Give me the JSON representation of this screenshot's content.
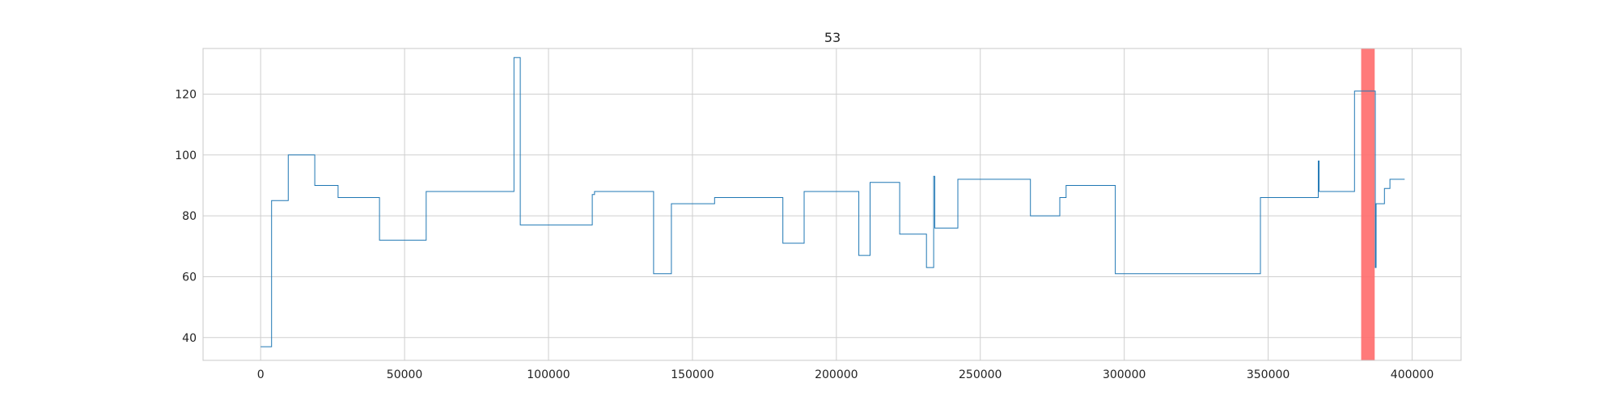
{
  "chart_data": {
    "type": "line",
    "title": "53",
    "xlabel": "",
    "ylabel": "",
    "xlim": [
      -20000,
      417000
    ],
    "ylim": [
      32.5,
      135
    ],
    "x_ticks": [
      0,
      50000,
      100000,
      150000,
      200000,
      250000,
      300000,
      350000,
      400000
    ],
    "x_tick_labels": [
      "0",
      "50000",
      "100000",
      "150000",
      "200000",
      "250000",
      "300000",
      "350000",
      "400000"
    ],
    "y_ticks": [
      40,
      60,
      80,
      100,
      120
    ],
    "y_tick_labels": [
      "40",
      "60",
      "80",
      "100",
      "120"
    ],
    "grid": true,
    "line_style": "step",
    "highlight_span": {
      "x0": 382300,
      "x1": 387000,
      "color": "#ff6b6b"
    },
    "colors": {
      "line": "#1f77b4",
      "grid": "#cfcfcf",
      "axes": "#c8c8c8"
    },
    "series": [
      {
        "points": [
          [
            0,
            37
          ],
          [
            3800,
            37
          ],
          [
            3800,
            85
          ],
          [
            9600,
            85
          ],
          [
            9600,
            100
          ],
          [
            18800,
            100
          ],
          [
            18800,
            90
          ],
          [
            26900,
            90
          ],
          [
            26900,
            86
          ],
          [
            41300,
            86
          ],
          [
            41300,
            72
          ],
          [
            57500,
            72
          ],
          [
            57500,
            88
          ],
          [
            88000,
            88
          ],
          [
            88000,
            132
          ],
          [
            90200,
            132
          ],
          [
            90200,
            77
          ],
          [
            115200,
            77
          ],
          [
            115200,
            87
          ],
          [
            116000,
            87
          ],
          [
            116000,
            88
          ],
          [
            136500,
            88
          ],
          [
            136500,
            61
          ],
          [
            142700,
            61
          ],
          [
            142700,
            84
          ],
          [
            157700,
            84
          ],
          [
            157700,
            86
          ],
          [
            181400,
            86
          ],
          [
            181400,
            71
          ],
          [
            188800,
            71
          ],
          [
            188800,
            88
          ],
          [
            207800,
            88
          ],
          [
            207800,
            67
          ],
          [
            211700,
            67
          ],
          [
            211700,
            91
          ],
          [
            222000,
            91
          ],
          [
            222000,
            74
          ],
          [
            231300,
            74
          ],
          [
            231300,
            63
          ],
          [
            233800,
            63
          ],
          [
            233800,
            93
          ],
          [
            234200,
            93
          ],
          [
            234200,
            76
          ],
          [
            242200,
            76
          ],
          [
            242200,
            92
          ],
          [
            267400,
            92
          ],
          [
            267400,
            80
          ],
          [
            277600,
            80
          ],
          [
            277600,
            86
          ],
          [
            279800,
            86
          ],
          [
            279800,
            90
          ],
          [
            296900,
            90
          ],
          [
            296900,
            61
          ],
          [
            347300,
            61
          ],
          [
            347300,
            86
          ],
          [
            367400,
            86
          ],
          [
            367400,
            98
          ],
          [
            367700,
            98
          ],
          [
            367700,
            88
          ],
          [
            380000,
            88
          ],
          [
            380000,
            121
          ],
          [
            387200,
            121
          ],
          [
            387200,
            63
          ],
          [
            387500,
            63
          ],
          [
            387500,
            84
          ],
          [
            390400,
            84
          ],
          [
            390400,
            89
          ],
          [
            392300,
            89
          ],
          [
            392300,
            92
          ],
          [
            397400,
            92
          ]
        ]
      }
    ]
  }
}
